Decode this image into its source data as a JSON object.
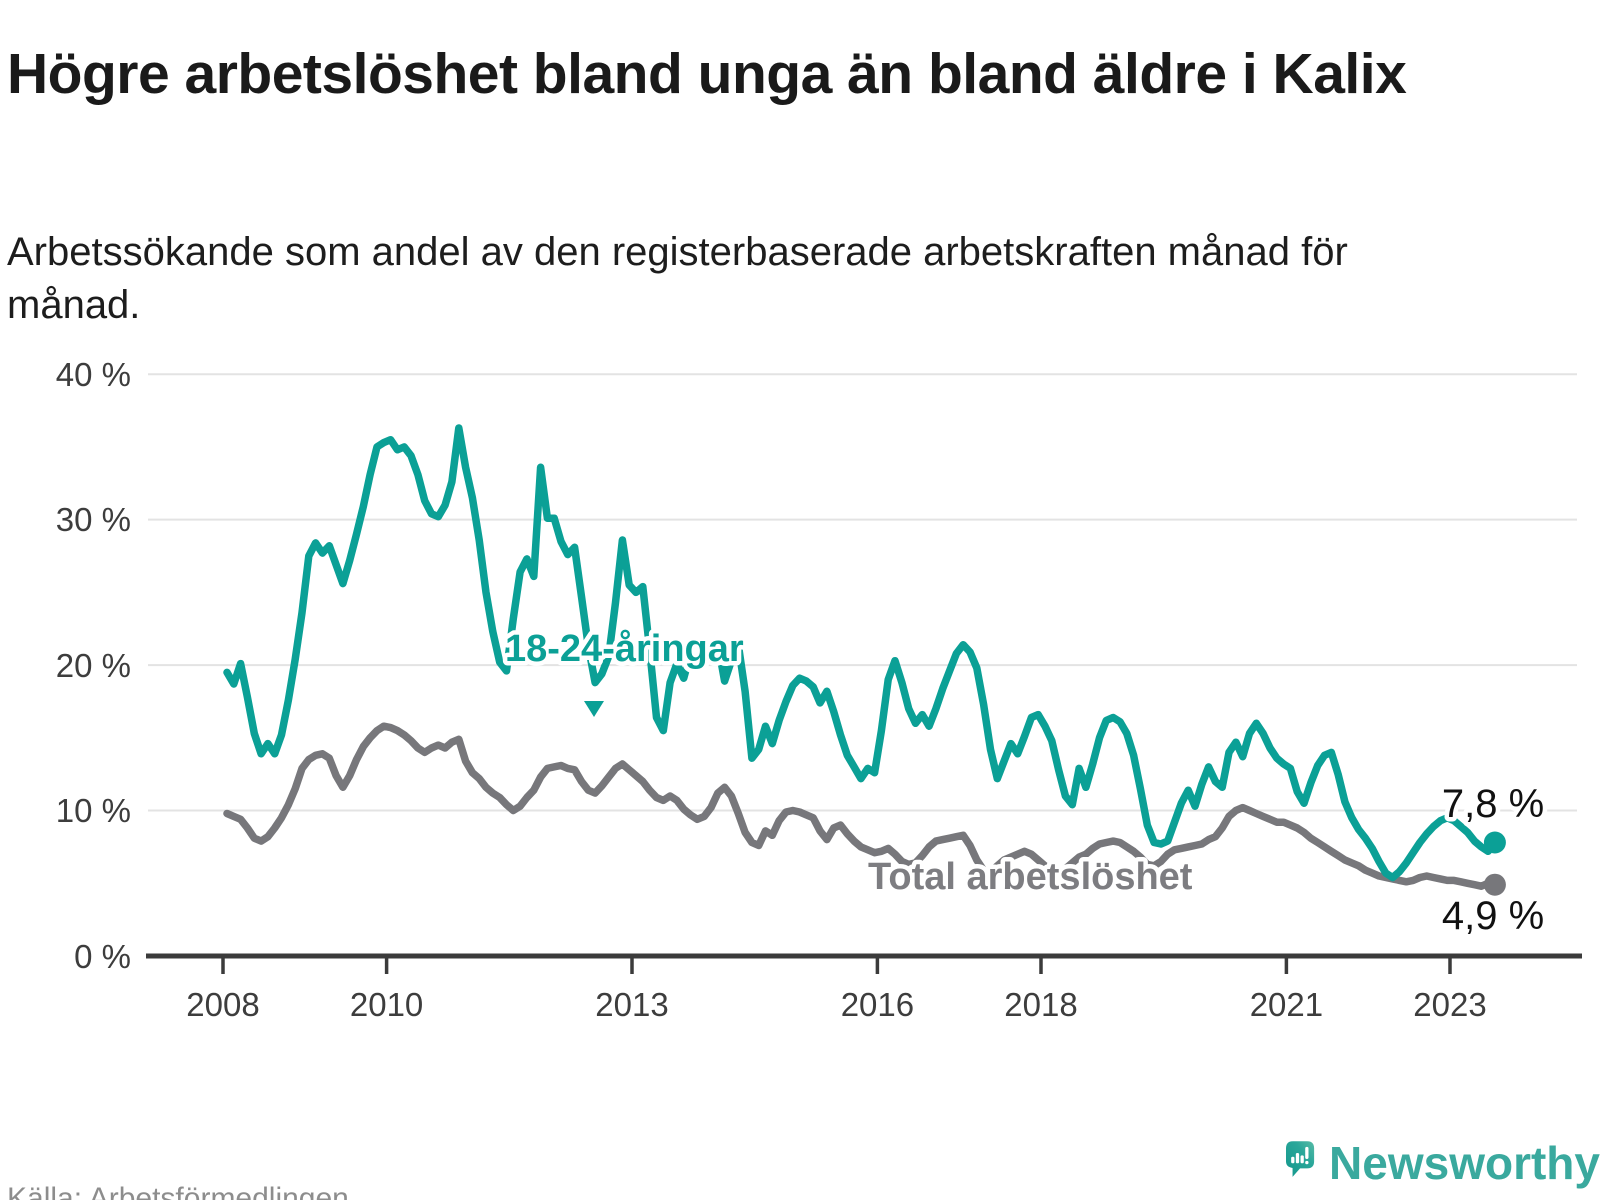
{
  "page": {
    "background": "#ffffff"
  },
  "header": {
    "title": "Högre arbetslöshet bland unga än bland äldre i Kalix",
    "subtitle": "Arbetssökande som andel av den registerbaserade arbetskraften månad för månad."
  },
  "footer": {
    "source": "Källa: Arbetsförmedlingen",
    "brand": "Newsworthy",
    "brand_color": "#3aa99e"
  },
  "chart_data": {
    "type": "line",
    "title": "Högre arbetslöshet bland unga än bland äldre i Kalix",
    "subtitle": "Arbetssökande som andel av den registerbaserade arbetskraften månad för månad.",
    "grid": true,
    "legend_position": "inline-labels",
    "x": {
      "frequency": "monthly",
      "start_year": 2008,
      "start_month": 1,
      "end_year": 2023,
      "end_month": 7,
      "tick_years": [
        2008,
        2010,
        2013,
        2016,
        2018,
        2021,
        2023
      ],
      "tick_labels": [
        "2008",
        "2010",
        "2013",
        "2016",
        "2018",
        "2021",
        "2023"
      ]
    },
    "y": {
      "min": 0,
      "max": 40,
      "ticks": [
        0,
        10,
        20,
        30,
        40
      ],
      "tick_labels": [
        "0 %",
        "10 %",
        "20 %",
        "30 %",
        "40 %"
      ],
      "gridline_color": "#e3e3e3",
      "axis_color": "#3b3b3b"
    },
    "series": [
      {
        "name": "18-24-åringar",
        "color": "#0ba096",
        "end_label": "7,8 %",
        "end_value": 7.8,
        "values": [
          19.5,
          18.7,
          20.1,
          17.8,
          15.3,
          13.9,
          14.6,
          13.9,
          15.2,
          17.6,
          20.4,
          23.6,
          27.5,
          28.4,
          27.7,
          28.2,
          26.9,
          25.6,
          27.2,
          29.0,
          30.9,
          33.1,
          35.0,
          35.3,
          35.5,
          34.8,
          35.0,
          34.4,
          33.1,
          31.3,
          30.4,
          30.2,
          31.0,
          32.6,
          36.3,
          33.6,
          31.5,
          28.6,
          25.0,
          22.3,
          20.2,
          19.6,
          23.2,
          26.4,
          27.3,
          26.1,
          33.6,
          30.1,
          30.1,
          28.5,
          27.6,
          28.1,
          24.7,
          21.3,
          18.8,
          19.4,
          20.6,
          24.3,
          28.6,
          25.5,
          25.0,
          25.4,
          21.1,
          16.4,
          15.5,
          18.8,
          20.1,
          19.1,
          20.8,
          21.3,
          20.6,
          21.1,
          21.5,
          18.9,
          20.3,
          21.4,
          18.2,
          13.6,
          14.2,
          15.8,
          14.6,
          16.2,
          17.5,
          18.6,
          19.1,
          18.9,
          18.5,
          17.4,
          18.2,
          16.8,
          15.2,
          13.8,
          13.0,
          12.2,
          12.9,
          12.6,
          15.5,
          19.0,
          20.3,
          18.8,
          17.0,
          16.0,
          16.6,
          15.8,
          17.0,
          18.4,
          19.6,
          20.8,
          21.4,
          20.9,
          19.8,
          17.3,
          14.2,
          12.2,
          13.4,
          14.6,
          13.9,
          15.1,
          16.4,
          16.6,
          15.8,
          14.8,
          12.8,
          11.0,
          10.4,
          12.9,
          11.6,
          13.2,
          15.0,
          16.2,
          16.4,
          16.1,
          15.3,
          13.8,
          11.5,
          9.0,
          7.8,
          7.7,
          7.9,
          9.2,
          10.5,
          11.4,
          10.3,
          11.8,
          13.0,
          12.0,
          11.6,
          14.0,
          14.7,
          13.7,
          15.3,
          16.0,
          15.3,
          14.3,
          13.6,
          13.2,
          12.9,
          11.3,
          10.5,
          11.9,
          13.1,
          13.8,
          14.0,
          12.5,
          10.6,
          9.5,
          8.7,
          8.1,
          7.4,
          6.5,
          5.7,
          5.4,
          5.8,
          6.4,
          7.1,
          7.8,
          8.4,
          8.9,
          9.3,
          9.5,
          9.3,
          8.9,
          8.5,
          7.9,
          7.5,
          7.2,
          7.8
        ]
      },
      {
        "name": "Total arbetslöshet",
        "color": "#77777b",
        "end_label": "4,9 %",
        "end_value": 4.9,
        "values": [
          9.8,
          9.6,
          9.4,
          8.8,
          8.1,
          7.9,
          8.2,
          8.8,
          9.5,
          10.4,
          11.5,
          12.9,
          13.5,
          13.8,
          13.9,
          13.6,
          12.4,
          11.6,
          12.4,
          13.5,
          14.4,
          15.0,
          15.5,
          15.8,
          15.7,
          15.5,
          15.2,
          14.8,
          14.3,
          14.0,
          14.3,
          14.5,
          14.3,
          14.7,
          14.9,
          13.4,
          12.6,
          12.2,
          11.6,
          11.2,
          10.9,
          10.4,
          10.0,
          10.3,
          10.9,
          11.4,
          12.3,
          12.9,
          13.0,
          13.1,
          12.9,
          12.8,
          12.0,
          11.4,
          11.2,
          11.7,
          12.3,
          12.9,
          13.2,
          12.8,
          12.4,
          12.0,
          11.4,
          10.9,
          10.7,
          11.0,
          10.7,
          10.1,
          9.7,
          9.4,
          9.6,
          10.2,
          11.2,
          11.6,
          11.0,
          9.8,
          8.5,
          7.8,
          7.6,
          8.6,
          8.3,
          9.3,
          9.9,
          10.0,
          9.9,
          9.7,
          9.5,
          8.6,
          8.0,
          8.8,
          9.0,
          8.4,
          7.9,
          7.5,
          7.3,
          7.1,
          7.2,
          7.4,
          7.0,
          6.5,
          6.3,
          6.4,
          6.9,
          7.5,
          7.9,
          8.0,
          8.1,
          8.2,
          8.3,
          7.6,
          6.6,
          5.9,
          5.8,
          6.2,
          6.6,
          6.8,
          7.0,
          7.2,
          7.0,
          6.6,
          6.2,
          5.9,
          5.8,
          6.0,
          6.4,
          6.8,
          7.0,
          7.4,
          7.7,
          7.8,
          7.9,
          7.8,
          7.5,
          7.2,
          6.8,
          6.3,
          6.2,
          6.5,
          7.0,
          7.3,
          7.4,
          7.5,
          7.6,
          7.7,
          8.0,
          8.2,
          8.8,
          9.6,
          10.0,
          10.2,
          10.0,
          9.8,
          9.6,
          9.4,
          9.2,
          9.2,
          9.0,
          8.8,
          8.5,
          8.1,
          7.8,
          7.5,
          7.2,
          6.9,
          6.6,
          6.4,
          6.2,
          5.9,
          5.7,
          5.5,
          5.4,
          5.3,
          5.2,
          5.1,
          5.2,
          5.4,
          5.5,
          5.4,
          5.3,
          5.2,
          5.2,
          5.1,
          5.0,
          4.9,
          4.8,
          5.0,
          4.9
        ]
      }
    ]
  }
}
